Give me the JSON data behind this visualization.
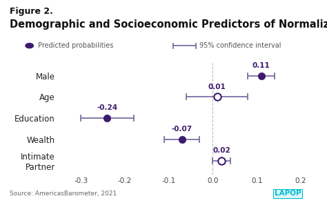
{
  "title": "Demographic and Socioeconomic Predictors of Normalizing IPV",
  "figure_label": "Figure 2.",
  "categories": [
    "Male",
    "Age",
    "Education",
    "Wealth",
    "Intimate\nPartner"
  ],
  "estimates": [
    0.11,
    0.01,
    -0.24,
    -0.07,
    0.02
  ],
  "ci_low": [
    0.08,
    -0.06,
    -0.3,
    -0.11,
    0.0
  ],
  "ci_high": [
    0.14,
    0.08,
    -0.18,
    -0.03,
    0.04
  ],
  "filled": [
    true,
    false,
    true,
    true,
    false
  ],
  "dot_color": "#3d1a6e",
  "dot_color_open": "#ffffff",
  "dot_edgecolor": "#3d1a6e",
  "ci_color": "#7b6ea0",
  "dashed_color": "#bbbbbb",
  "xlim": [
    -0.35,
    0.23
  ],
  "xticks": [
    -0.3,
    -0.2,
    -0.1,
    0.0,
    0.1,
    0.2
  ],
  "background_color": "#ffffff",
  "source_text": "Source: AmericasBarometer, 2021",
  "lapop_color": "#00bcd4",
  "lapop_text_color": "#00bcd4",
  "legend_dot_label": "Predicted probabilities",
  "legend_ci_label": "95% confidence interval",
  "value_color": "#3d1a6e",
  "value_fontsize": 7.5,
  "label_fontsize": 8.5,
  "title_fontsize": 10.5,
  "figure_label_fontsize": 9
}
